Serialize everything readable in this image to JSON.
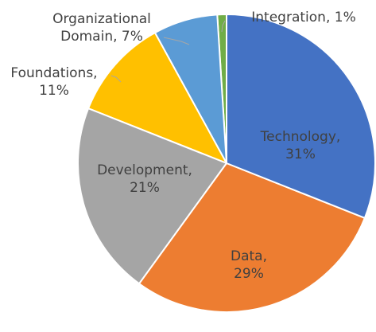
{
  "chart_data": {
    "type": "pie",
    "values": [
      31,
      29,
      21,
      11,
      7,
      1
    ],
    "value_labels": [
      "Technology, 31%",
      "Data, 29%",
      "Development, 21%",
      "Foundations, 11%",
      "Organizational Domain, 7%",
      "Integration, 1%"
    ],
    "colors": [
      "#4472c4",
      "#ed7d31",
      "#a5a5a5",
      "#ffc000",
      "#5b9bd5",
      "#70ad47"
    ]
  }
}
